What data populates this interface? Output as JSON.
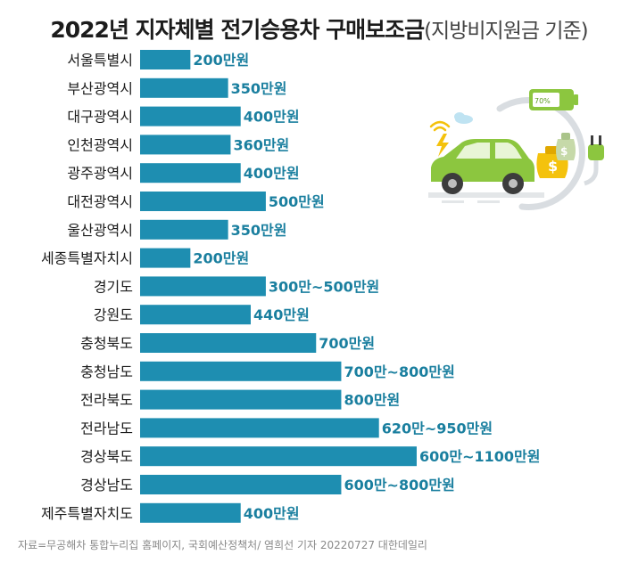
{
  "title": {
    "main": "2022년 지자체별 전기승용차 구매보조금",
    "sub": "(지방비지원금 기준)"
  },
  "source": "자료=무공해차 통합누리집 홈페이지, 국회예산정책처/ 염희선 기자 20220727 대한데일리",
  "colors": {
    "bar": "#1e8eb1",
    "value_text": "#1a7f9f",
    "label_text": "#1c1c1c",
    "car": "#8cc63f",
    "gauge": "#d9dde1"
  },
  "illustration": {
    "battery_label": "70%",
    "icons": [
      "lightning-icon",
      "wifi-icon",
      "cloud-icon",
      "electric-car-icon",
      "money-bag-icon",
      "plug-icon",
      "battery-icon"
    ]
  },
  "chart_data": {
    "type": "bar",
    "orientation": "horizontal",
    "title": "2022년 지자체별 전기승용차 구매보조금",
    "subtitle": "(지방비지원금 기준)",
    "unit": "만원",
    "xlim": [
      0,
      1100
    ],
    "grid": false,
    "legend": "none",
    "categories": [
      "서울특별시",
      "부산광역시",
      "대구광역시",
      "인천광역시",
      "광주광역시",
      "대전광역시",
      "울산광역시",
      "세종특별자치시",
      "경기도",
      "강원도",
      "충청북도",
      "충청남도",
      "전라북도",
      "전라남도",
      "경상북도",
      "경상남도",
      "제주특별자치도"
    ],
    "values": [
      200,
      350,
      400,
      360,
      400,
      500,
      350,
      200,
      500,
      440,
      700,
      800,
      800,
      950,
      1100,
      800,
      400
    ],
    "range_min": [
      200,
      350,
      400,
      360,
      400,
      500,
      350,
      200,
      300,
      440,
      700,
      700,
      800,
      620,
      600,
      600,
      400
    ],
    "labels": [
      "200만원",
      "350만원",
      "400만원",
      "360만원",
      "400만원",
      "500만원",
      "350만원",
      "200만원",
      "300만~500만원",
      "440만원",
      "700만원",
      "700만~800만원",
      "800만원",
      "620만~950만원",
      "600만~1100만원",
      "600만~800만원",
      "400만원"
    ]
  }
}
